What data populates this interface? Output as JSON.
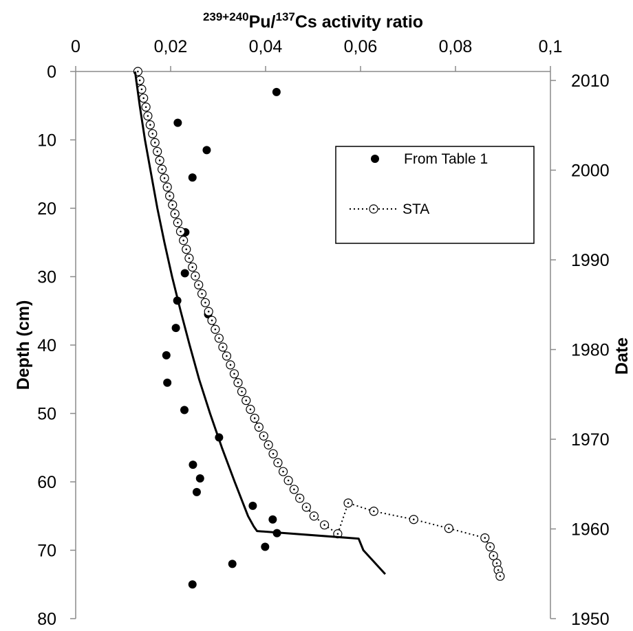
{
  "chart_data": {
    "type": "scatter",
    "title_main": "Pu/",
    "title_sup1": "239+240",
    "title_sup2": "137",
    "title_end": "Cs activity ratio",
    "ylabel": "Depth (cm)",
    "y2label": "Date",
    "x_ticks": [
      "0",
      "0,02",
      "0,04",
      "0,06",
      "0,08",
      "0,1"
    ],
    "y_ticks": [
      "0",
      "10",
      "20",
      "30",
      "40",
      "50",
      "60",
      "70",
      "80"
    ],
    "y2_ticks": [
      "2010",
      "2000",
      "1990",
      "1980",
      "1970",
      "1960",
      "1950"
    ],
    "xlim": [
      0,
      0.1
    ],
    "ylim": [
      0,
      80
    ],
    "y2lim": [
      2011,
      1950
    ],
    "y2_values": [
      2010,
      2000,
      1990,
      1980,
      1970,
      1960,
      1950
    ],
    "grid": false,
    "legend": {
      "position": "top-right",
      "entries": [
        "From Table 1",
        "STA"
      ]
    },
    "series": [
      {
        "name": "From Table 1",
        "style": "filled-dots",
        "color": "#000000",
        "points": [
          {
            "x": 0.0423,
            "y": 3
          },
          {
            "x": 0.0215,
            "y": 7.5
          },
          {
            "x": 0.0276,
            "y": 11.5
          },
          {
            "x": 0.0246,
            "y": 15.5
          },
          {
            "x": 0.0231,
            "y": 23.5
          },
          {
            "x": 0.023,
            "y": 29.5
          },
          {
            "x": 0.0214,
            "y": 33.5
          },
          {
            "x": 0.0279,
            "y": 35.5
          },
          {
            "x": 0.0211,
            "y": 37.5
          },
          {
            "x": 0.0191,
            "y": 41.5
          },
          {
            "x": 0.0193,
            "y": 45.5
          },
          {
            "x": 0.0229,
            "y": 49.5
          },
          {
            "x": 0.0302,
            "y": 53.5
          },
          {
            "x": 0.0247,
            "y": 57.5
          },
          {
            "x": 0.0262,
            "y": 59.5
          },
          {
            "x": 0.0255,
            "y": 61.5
          },
          {
            "x": 0.0373,
            "y": 63.5
          },
          {
            "x": 0.0415,
            "y": 65.5
          },
          {
            "x": 0.0424,
            "y": 67.5
          },
          {
            "x": 0.0399,
            "y": 69.5
          },
          {
            "x": 0.033,
            "y": 72
          },
          {
            "x": 0.0246,
            "y": 75
          }
        ]
      },
      {
        "name": "STA",
        "style": "dotted-line-open-circles",
        "color": "#000000",
        "points": [
          {
            "x": 0.0131,
            "y": 0
          },
          {
            "x": 0.0135,
            "y": 1.3
          },
          {
            "x": 0.0139,
            "y": 2.6
          },
          {
            "x": 0.0143,
            "y": 3.9
          },
          {
            "x": 0.0148,
            "y": 5.2
          },
          {
            "x": 0.0152,
            "y": 6.5
          },
          {
            "x": 0.0157,
            "y": 7.8
          },
          {
            "x": 0.0162,
            "y": 9.1
          },
          {
            "x": 0.0167,
            "y": 10.4
          },
          {
            "x": 0.0172,
            "y": 11.7
          },
          {
            "x": 0.0177,
            "y": 13
          },
          {
            "x": 0.0182,
            "y": 14.3
          },
          {
            "x": 0.0187,
            "y": 15.6
          },
          {
            "x": 0.0193,
            "y": 16.9
          },
          {
            "x": 0.0198,
            "y": 18.2
          },
          {
            "x": 0.0204,
            "y": 19.5
          },
          {
            "x": 0.0209,
            "y": 20.8
          },
          {
            "x": 0.0215,
            "y": 22.1
          },
          {
            "x": 0.0221,
            "y": 23.4
          },
          {
            "x": 0.0227,
            "y": 24.7
          },
          {
            "x": 0.0233,
            "y": 26
          },
          {
            "x": 0.0239,
            "y": 27.3
          },
          {
            "x": 0.0246,
            "y": 28.6
          },
          {
            "x": 0.0252,
            "y": 29.9
          },
          {
            "x": 0.0259,
            "y": 31.2
          },
          {
            "x": 0.0266,
            "y": 32.5
          },
          {
            "x": 0.0273,
            "y": 33.8
          },
          {
            "x": 0.028,
            "y": 35.1
          },
          {
            "x": 0.0287,
            "y": 36.4
          },
          {
            "x": 0.0294,
            "y": 37.7
          },
          {
            "x": 0.0302,
            "y": 39
          },
          {
            "x": 0.031,
            "y": 40.3
          },
          {
            "x": 0.0318,
            "y": 41.6
          },
          {
            "x": 0.0326,
            "y": 42.9
          },
          {
            "x": 0.0334,
            "y": 44.2
          },
          {
            "x": 0.0342,
            "y": 45.5
          },
          {
            "x": 0.035,
            "y": 46.8
          },
          {
            "x": 0.0359,
            "y": 48.1
          },
          {
            "x": 0.0368,
            "y": 49.4
          },
          {
            "x": 0.0377,
            "y": 50.7
          },
          {
            "x": 0.0386,
            "y": 52
          },
          {
            "x": 0.0396,
            "y": 53.3
          },
          {
            "x": 0.0406,
            "y": 54.6
          },
          {
            "x": 0.0416,
            "y": 55.9
          },
          {
            "x": 0.0426,
            "y": 57.2
          },
          {
            "x": 0.0437,
            "y": 58.5
          },
          {
            "x": 0.0448,
            "y": 59.8
          },
          {
            "x": 0.046,
            "y": 61.1
          },
          {
            "x": 0.0472,
            "y": 62.4
          },
          {
            "x": 0.0486,
            "y": 63.7
          },
          {
            "x": 0.0502,
            "y": 65
          },
          {
            "x": 0.0524,
            "y": 66.3
          },
          {
            "x": 0.0552,
            "y": 67.6
          },
          {
            "x": 0.0574,
            "y": 63.1
          },
          {
            "x": 0.0628,
            "y": 64.3
          },
          {
            "x": 0.0712,
            "y": 65.5
          },
          {
            "x": 0.0786,
            "y": 66.8
          },
          {
            "x": 0.0862,
            "y": 68.2
          },
          {
            "x": 0.0873,
            "y": 69.5
          },
          {
            "x": 0.088,
            "y": 70.8
          },
          {
            "x": 0.0887,
            "y": 71.9
          },
          {
            "x": 0.089,
            "y": 72.9
          },
          {
            "x": 0.0894,
            "y": 73.8
          }
        ]
      },
      {
        "name": "",
        "style": "solid-line",
        "color": "#000000",
        "points": [
          {
            "x": 0.0125,
            "y": 0
          },
          {
            "x": 0.0135,
            "y": 5
          },
          {
            "x": 0.0146,
            "y": 10
          },
          {
            "x": 0.0159,
            "y": 15
          },
          {
            "x": 0.0172,
            "y": 20
          },
          {
            "x": 0.0187,
            "y": 25
          },
          {
            "x": 0.0203,
            "y": 30
          },
          {
            "x": 0.0221,
            "y": 35
          },
          {
            "x": 0.024,
            "y": 40
          },
          {
            "x": 0.026,
            "y": 45
          },
          {
            "x": 0.0283,
            "y": 50
          },
          {
            "x": 0.0308,
            "y": 55
          },
          {
            "x": 0.0335,
            "y": 60
          },
          {
            "x": 0.0363,
            "y": 65
          },
          {
            "x": 0.0375,
            "y": 66.5
          },
          {
            "x": 0.0382,
            "y": 67.2
          },
          {
            "x": 0.0596,
            "y": 68.3
          },
          {
            "x": 0.0606,
            "y": 70
          },
          {
            "x": 0.0652,
            "y": 73.5
          }
        ]
      }
    ]
  }
}
